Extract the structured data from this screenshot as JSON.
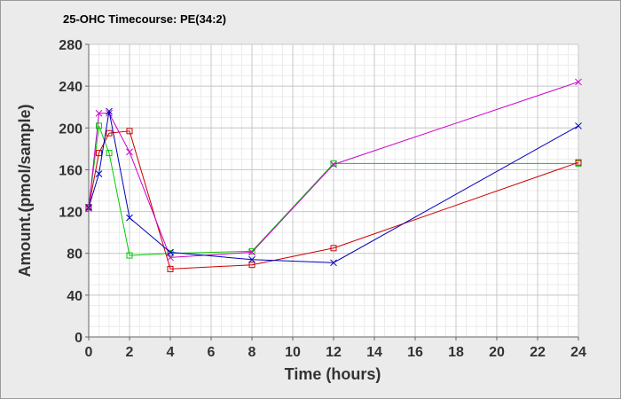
{
  "chart_data": {
    "type": "line",
    "title": "25-OHC Timecourse: PE(34:2)",
    "xlabel": "Time (hours)",
    "ylabel": "Amount.(pmol/sample)",
    "xlim": [
      0,
      24
    ],
    "ylim": [
      0,
      280
    ],
    "x_ticks": [
      0,
      2,
      4,
      6,
      8,
      10,
      12,
      14,
      16,
      18,
      20,
      22,
      24
    ],
    "y_ticks": [
      0,
      40,
      80,
      120,
      160,
      200,
      240,
      280
    ],
    "grid": true,
    "legend": "none",
    "series": [
      {
        "color": "#00cc00",
        "marker": "square",
        "x": [
          0,
          0.5,
          1,
          2,
          4,
          8,
          12,
          24
        ],
        "values": [
          124,
          202,
          176,
          78,
          80,
          82,
          166,
          166
        ]
      },
      {
        "color": "#cc0000",
        "marker": "square",
        "x": [
          0,
          0.5,
          1,
          2,
          4,
          8,
          12,
          24
        ],
        "values": [
          124,
          176,
          195,
          197,
          65,
          69,
          85,
          167
        ]
      },
      {
        "color": "#cc00cc",
        "marker": "x",
        "x": [
          0,
          0.5,
          1,
          2,
          4,
          8,
          12,
          24
        ],
        "values": [
          123,
          214,
          214,
          177,
          76,
          81,
          165,
          244
        ]
      },
      {
        "color": "#0000bb",
        "marker": "x",
        "x": [
          0,
          0.5,
          1,
          2,
          4,
          8,
          12,
          24
        ],
        "values": [
          124,
          156,
          216,
          114,
          81,
          74,
          71,
          202
        ]
      }
    ]
  }
}
